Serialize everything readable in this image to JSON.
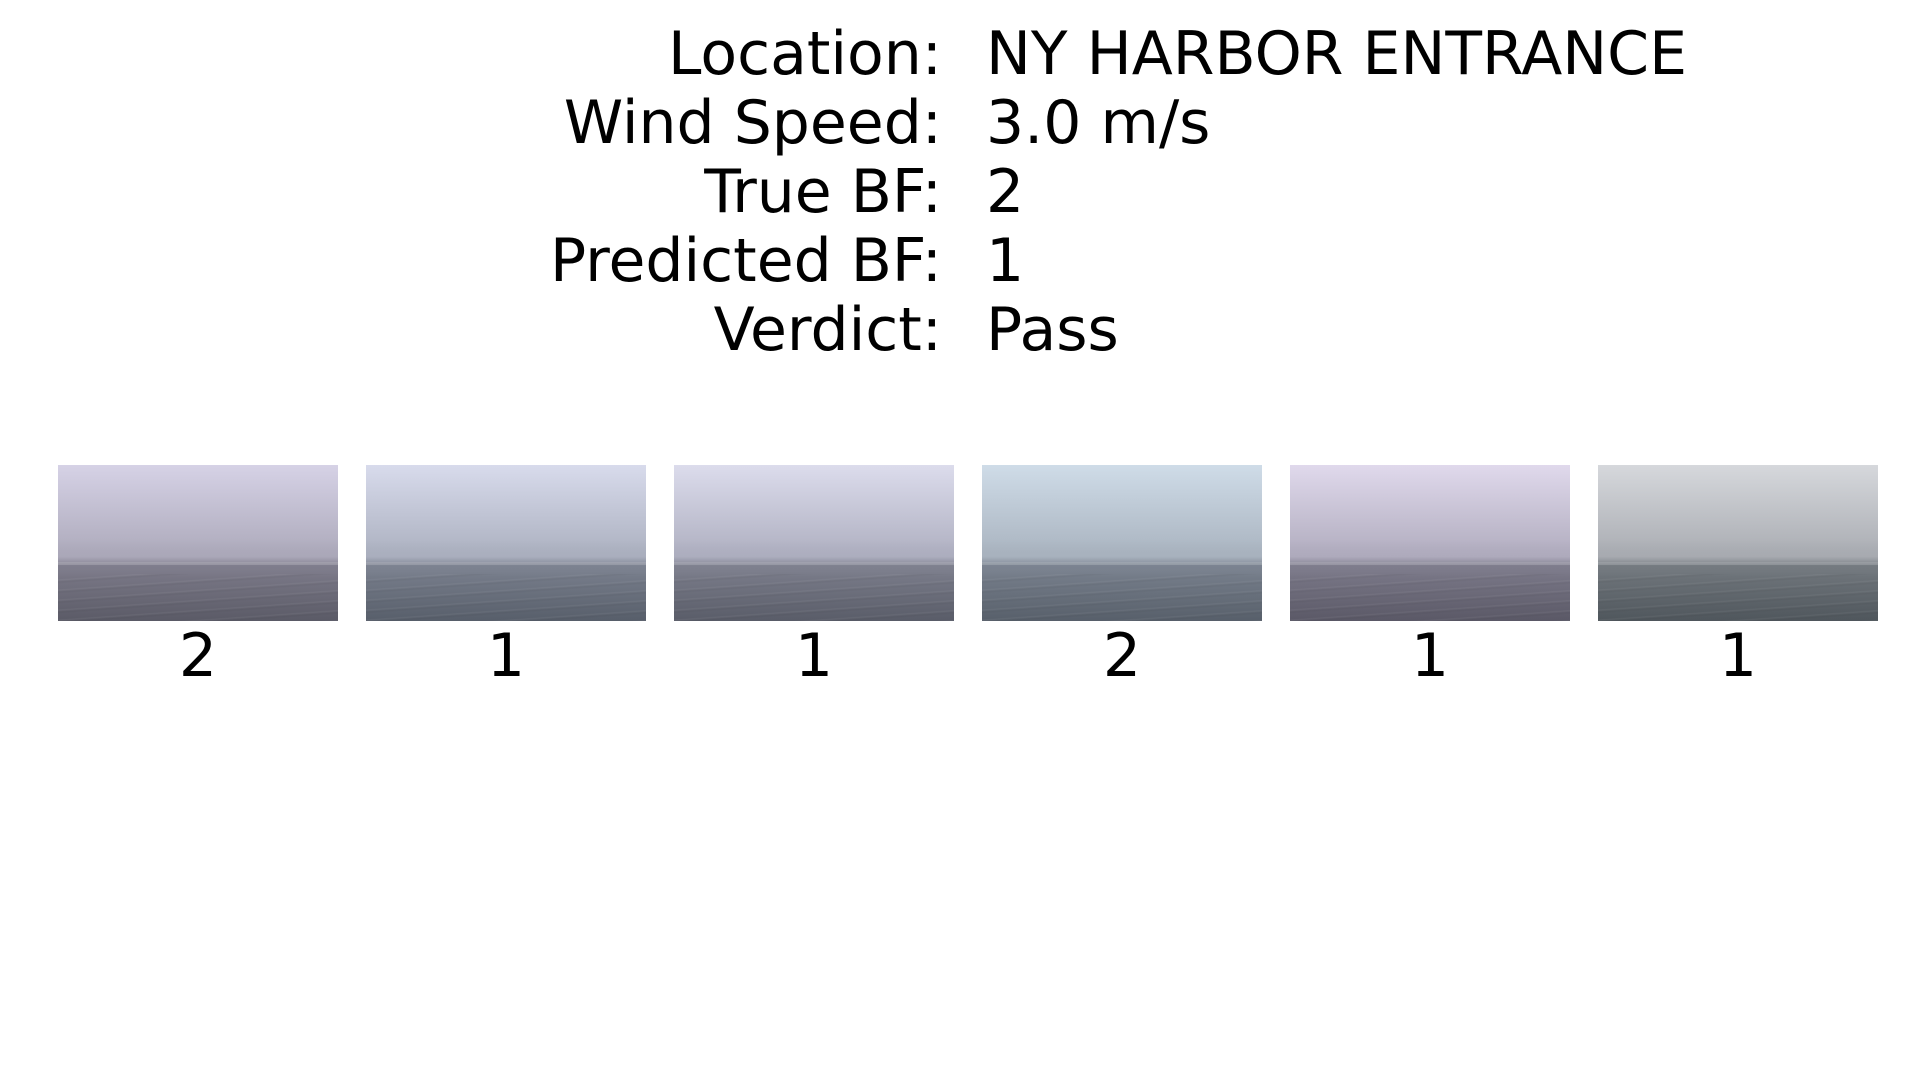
{
  "info": {
    "location_label": "Location:",
    "location_value": "NY HARBOR ENTRANCE",
    "wind_label": "Wind Speed:",
    "wind_value": "3.0 m/s",
    "true_bf_label": "True BF:",
    "true_bf_value": "2",
    "pred_bf_label": "Predicted BF:",
    "pred_bf_value": "1",
    "verdict_label": "Verdict:",
    "verdict_value": "Pass"
  },
  "thumbnails": [
    {
      "label": "2",
      "sky_top": "#d6d2e6",
      "sky_bottom": "#aaa7b8",
      "sea_top": "#7f7d8c",
      "sea_bottom": "#5a5a66"
    },
    {
      "label": "1",
      "sky_top": "#d8dbec",
      "sky_bottom": "#a9aebd",
      "sea_top": "#7c8290",
      "sea_bottom": "#575e6a"
    },
    {
      "label": "1",
      "sky_top": "#dcdcec",
      "sky_bottom": "#acadbe",
      "sea_top": "#7e808e",
      "sea_bottom": "#595c68"
    },
    {
      "label": "2",
      "sky_top": "#cfdce8",
      "sky_bottom": "#a7b1bd",
      "sea_top": "#7b8390",
      "sea_bottom": "#575f6a"
    },
    {
      "label": "1",
      "sky_top": "#e0d9ec",
      "sky_bottom": "#aeaabc",
      "sea_top": "#7e7c8c",
      "sea_bottom": "#5a5866"
    },
    {
      "label": "1",
      "sky_top": "#d6d8dc",
      "sky_bottom": "#a7aab0",
      "sea_top": "#747a80",
      "sea_bottom": "#4f565c"
    }
  ]
}
